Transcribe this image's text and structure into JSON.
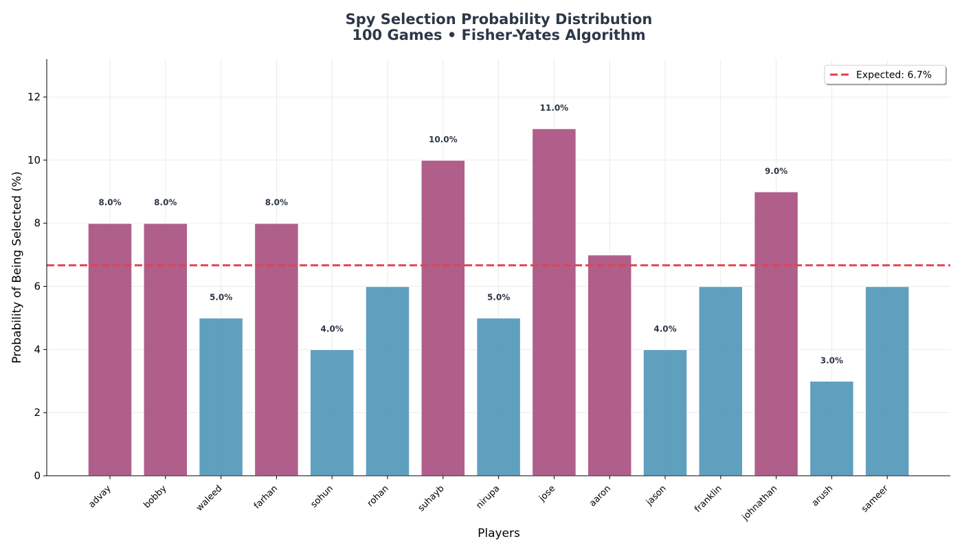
{
  "chart_data": {
    "type": "bar",
    "title_line1": "Spy Selection Probability Distribution",
    "title_line2": "100 Games • Fisher-Yates Algorithm",
    "xlabel": "Players",
    "ylabel": "Probability of Being Selected (%)",
    "ylim": [
      0,
      13.2
    ],
    "yticks": [
      "0",
      "2",
      "4",
      "6",
      "8",
      "10",
      "12"
    ],
    "categories": [
      "advay",
      "bobby",
      "waleed",
      "farhan",
      "sohun",
      "rohan",
      "suhayb",
      "nirupa",
      "jose",
      "aaron",
      "jason",
      "franklin",
      "johnathan",
      "arush",
      "sameer"
    ],
    "values": [
      8,
      8,
      5,
      8,
      4,
      6,
      10,
      5,
      11,
      7,
      4,
      6,
      9,
      3,
      6
    ],
    "data_labels": [
      "8.0%",
      "8.0%",
      "5.0%",
      "8.0%",
      "4.0%",
      "",
      "10.0%",
      "5.0%",
      "11.0%",
      "",
      "4.0%",
      "",
      "9.0%",
      "3.0%",
      ""
    ],
    "expected_value": 6.667,
    "legend": {
      "label": "Expected: 6.7%",
      "position": "top-right"
    },
    "grid": true,
    "colors": {
      "above_expected": "#a4497a",
      "below_expected": "#4a93b6",
      "expected_line": "#e5404f",
      "text_dark": "#2d3748"
    }
  }
}
